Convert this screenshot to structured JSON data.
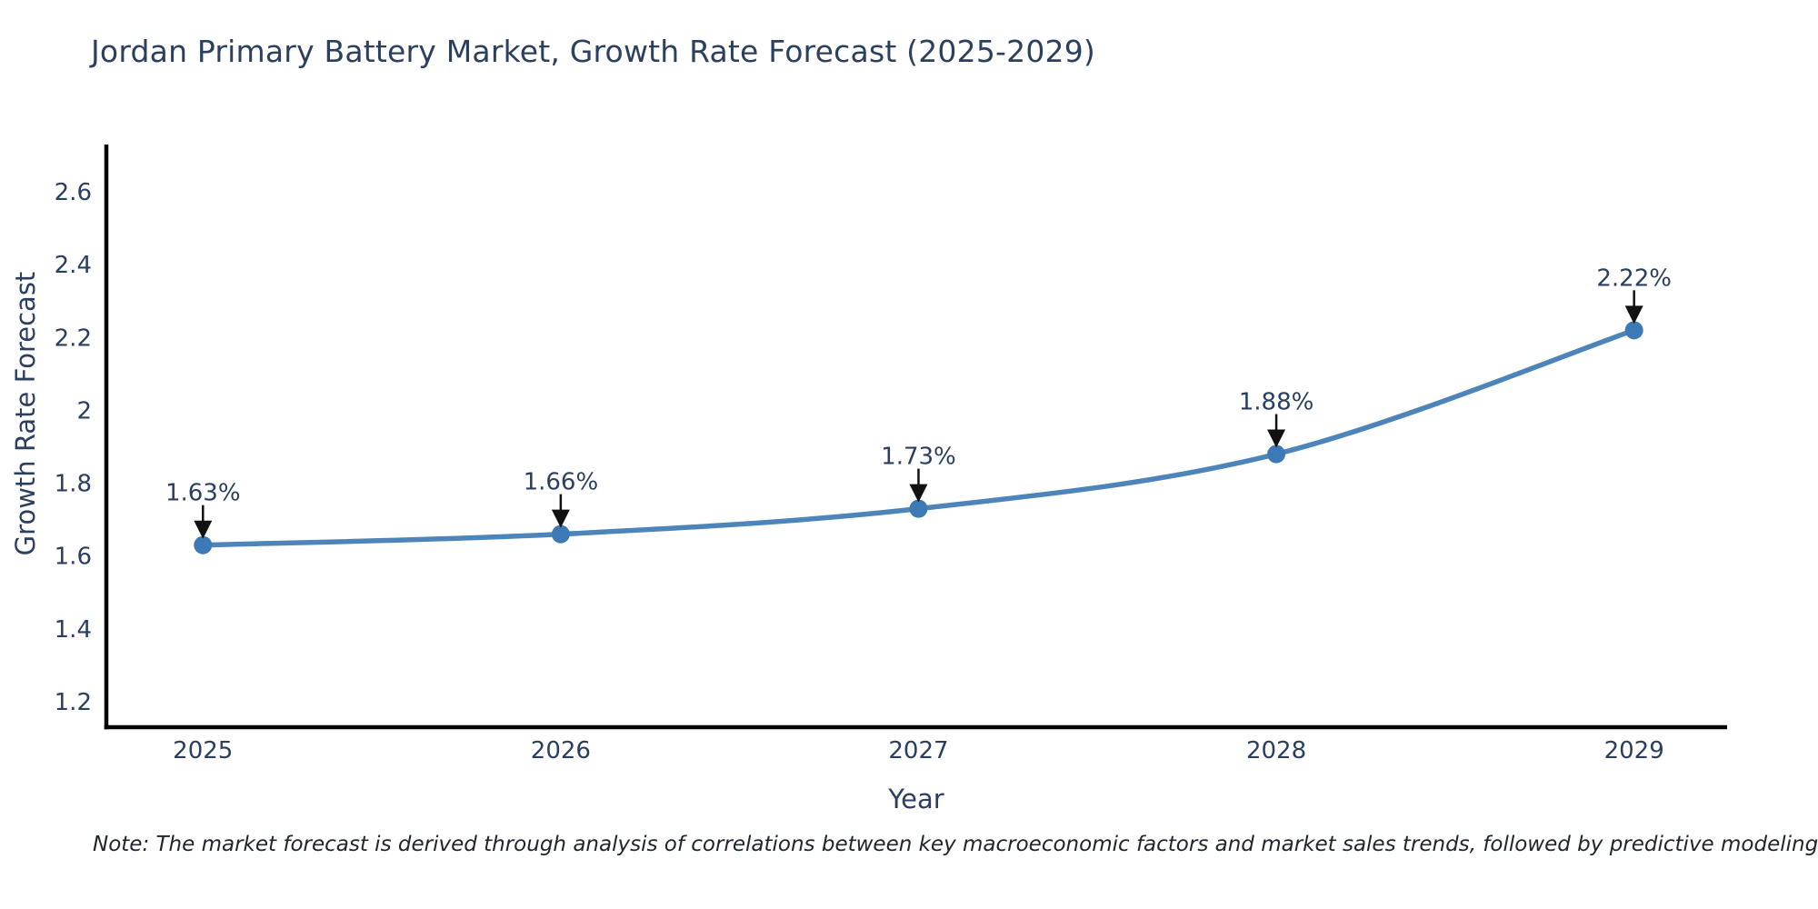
{
  "chart_data": {
    "type": "line",
    "title": "Jordan Primary Battery Market, Growth Rate Forecast (2025-2029)",
    "xlabel": "Year",
    "ylabel": "Growth Rate Forecast",
    "categories": [
      2025,
      2026,
      2027,
      2028,
      2029
    ],
    "series": [
      {
        "name": "Growth Rate Forecast",
        "values": [
          1.63,
          1.66,
          1.73,
          1.88,
          2.22
        ],
        "point_labels": [
          "1.63%",
          "1.66%",
          "1.73%",
          "1.88%",
          "2.22%"
        ]
      }
    ],
    "yticks": [
      1.2,
      1.4,
      1.6,
      1.8,
      2.0,
      2.2,
      2.4,
      2.6
    ],
    "ytick_labels": [
      "1.2",
      "1.4",
      "1.6",
      "1.8",
      "2",
      "2.2",
      "2.4",
      "2.6"
    ],
    "xtick_labels": [
      "2025",
      "2026",
      "2027",
      "2028",
      "2029"
    ],
    "xlim": [
      2024.73,
      2029.26
    ],
    "ylim": [
      1.13,
      2.73
    ],
    "grid": false,
    "legend": false,
    "line_shape": "spline",
    "annotations_have_arrows": true,
    "colors": {
      "line": "#4d84ba",
      "marker": "#3d79b5",
      "axis": "#000000",
      "tick_label": "#2a3f5f",
      "annotation_text": "#2a3f5f",
      "arrow": "#111111",
      "title": "#2b3f5e",
      "background": "#ffffff"
    }
  },
  "note": {
    "text": "Note: The market forecast is derived through analysis of correlations between key macroeconomic factors and market sales trends, followed by predictive modeling to project future sales"
  }
}
